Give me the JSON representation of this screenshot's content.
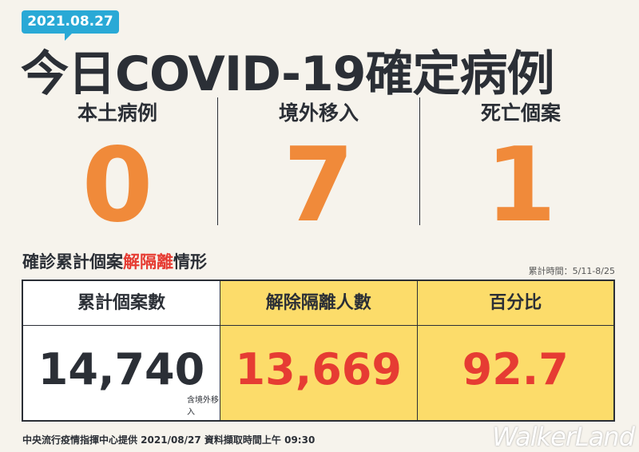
{
  "date": "2021.08.27",
  "title": "今日COVID-19確定病例",
  "stats": [
    {
      "label": "本土病例",
      "value": "0"
    },
    {
      "label": "境外移入",
      "value": "7"
    },
    {
      "label": "死亡個案",
      "value": "1"
    }
  ],
  "section": {
    "title_pre": "確診累計個案",
    "title_highlight": "解隔離",
    "title_post": "情形",
    "period": "累計時間：5/11-8/25"
  },
  "table": {
    "headers": [
      "累計個案數",
      "解除隔離人數",
      "百分比"
    ],
    "values": [
      "14,740",
      "13,669",
      "92.7"
    ],
    "footnote": "含境外移入"
  },
  "footer": "中央流行疫情指揮中心提供 2021/08/27 資料擷取時間上午 09:30",
  "watermark": "WalkerLand",
  "colors": {
    "accent_orange": "#f08a3a",
    "highlight_red": "#e63c33",
    "yellow": "#fcdc6a",
    "badge_blue": "#29a9d6"
  }
}
